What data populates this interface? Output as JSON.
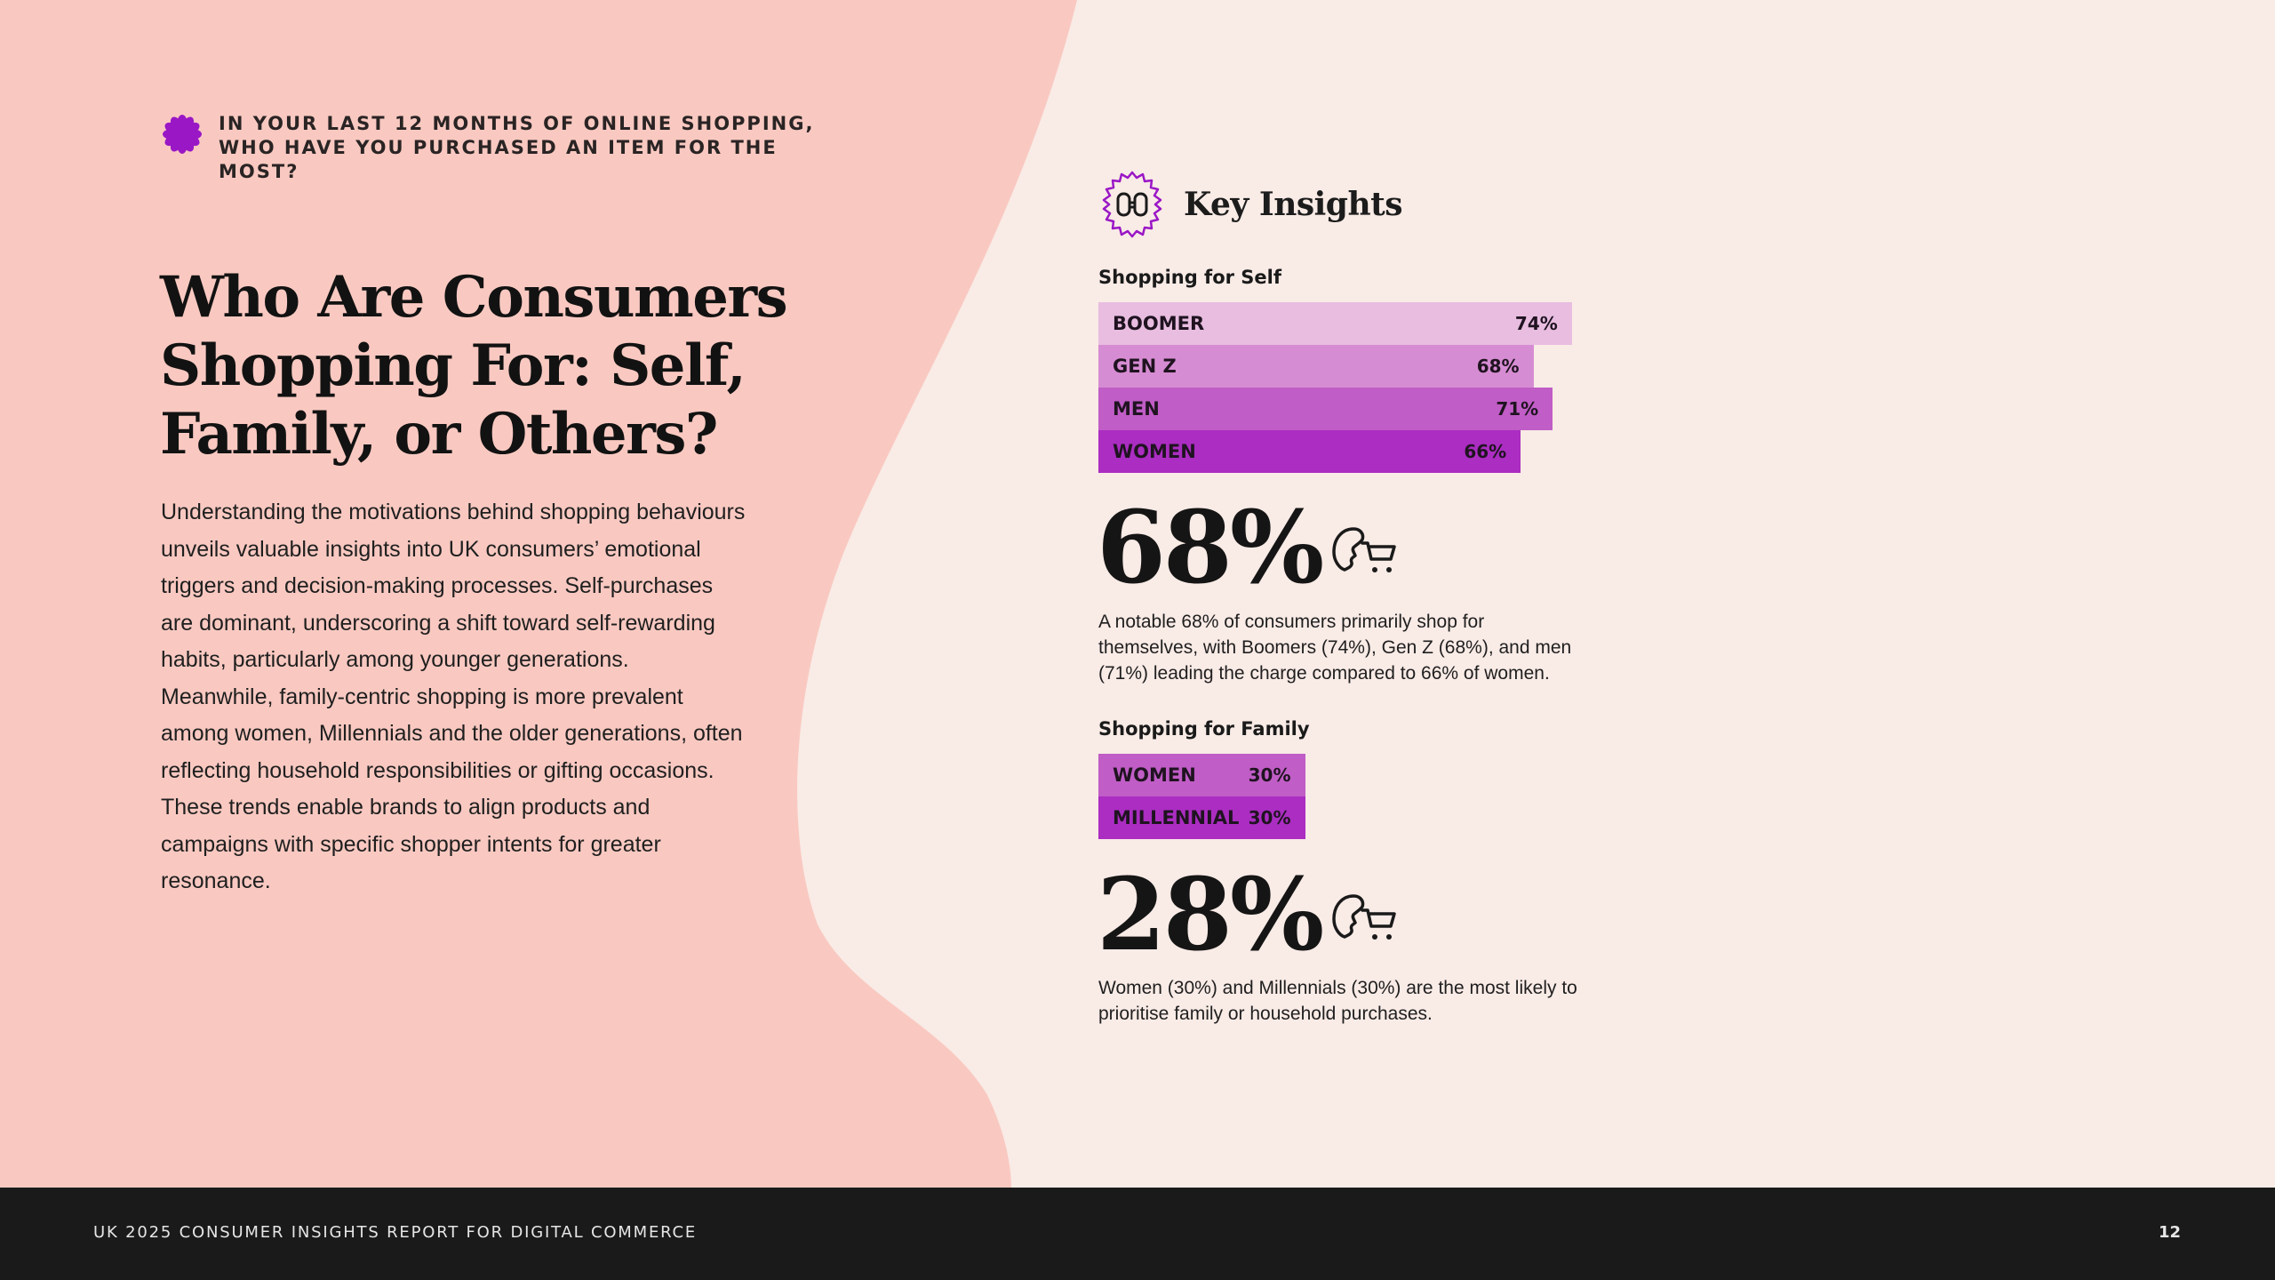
{
  "colors": {
    "page_bg": "#f9ebe6",
    "pink_panel": "#f9c9c1",
    "accent_purple": "#9a17c6",
    "bar_self": [
      "#e8bde0",
      "#d68cd2",
      "#c05dc6",
      "#ab2dc2"
    ],
    "bar_family": [
      "#c05dc6",
      "#ab2dc2"
    ],
    "footer_bg": "#1a1a1a"
  },
  "eyebrow": {
    "icon": "flower-burst-icon",
    "text": "IN YOUR LAST 12 MONTHS OF ONLINE SHOPPING, WHO HAVE YOU PURCHASED AN ITEM FOR THE MOST?"
  },
  "headline": "Who Are Consumers Shopping For: Self, Family, or Others?",
  "body": "Understanding the motivations behind shopping behaviours unveils valuable insights into UK consumers’ emotional triggers and decision-making processes. Self-purchases are dominant, underscoring a shift toward self-rewarding habits, particularly among younger generations. Meanwhile, family-centric shopping is more prevalent among women, Millennials and the older generations, often reflecting household responsibilities or gifting occasions. These trends enable brands to align products and campaigns with specific shopper intents for greater resonance.",
  "insights": {
    "icon": "binoculars-badge-icon",
    "title": "Key Insights"
  },
  "chart_data": [
    {
      "type": "bar",
      "title": "Shopping for Self",
      "categories": [
        "BOOMER",
        "GEN Z",
        "MEN",
        "WOMEN"
      ],
      "values": [
        74,
        68,
        71,
        66
      ],
      "labels": [
        "74%",
        "68%",
        "71%",
        "66%"
      ],
      "unit": "%"
    },
    {
      "type": "bar",
      "title": "Shopping for Family",
      "categories": [
        "WOMEN",
        "MILLENNIAL"
      ],
      "values": [
        30,
        30
      ],
      "labels": [
        "30%",
        "30%"
      ],
      "unit": "%"
    }
  ],
  "stats": [
    {
      "value": "68%",
      "icon": "shopper-cart-icon",
      "description": "A notable 68% of consumers primarily shop for themselves, with Boomers (74%), Gen Z (68%), and men (71%) leading the charge compared to 66% of women."
    },
    {
      "value": "28%",
      "icon": "shopper-cart-icon",
      "description": "Women (30%) and Millennials (30%) are the most likely to prioritise family or household purchases."
    }
  ],
  "footer": {
    "title": "UK 2025 CONSUMER INSIGHTS REPORT FOR DIGITAL COMMERCE",
    "page": "12"
  }
}
